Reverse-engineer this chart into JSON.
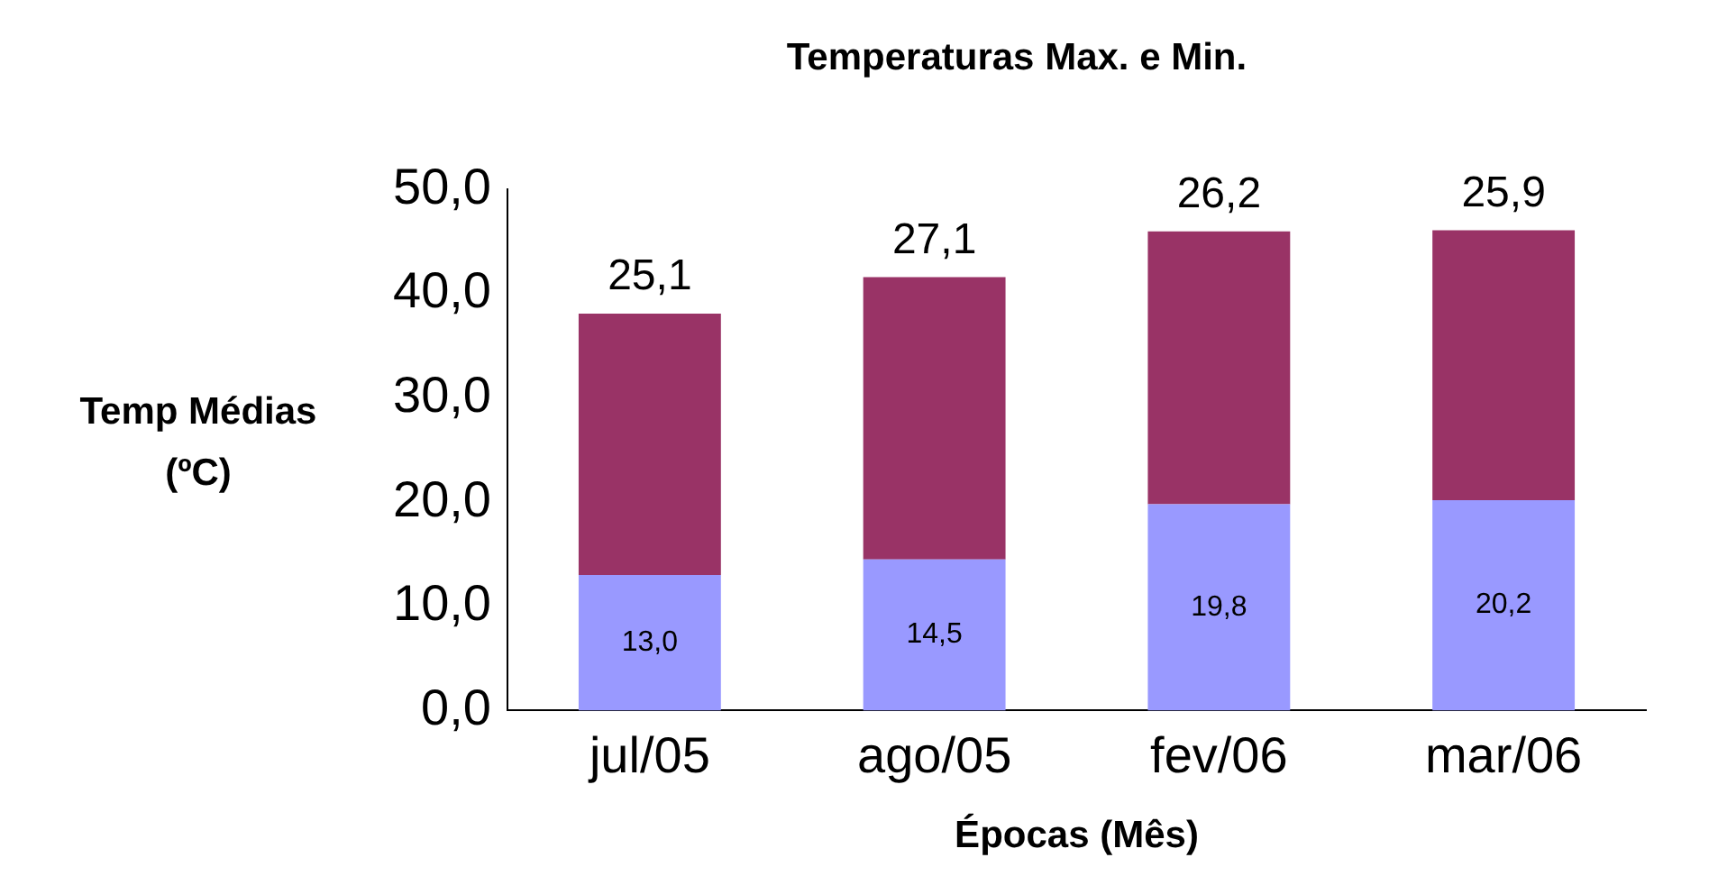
{
  "chart_data": {
    "type": "bar",
    "title": "Temperaturas Max. e Min.",
    "xlabel": "Épocas (Mês)",
    "ylabel": "Temp Médias (ºC)",
    "categories": [
      "jul/05",
      "ago/05",
      "fev/06",
      "mar/06"
    ],
    "series": [
      {
        "color": "#9999ff",
        "values": [
          13.0,
          14.5,
          19.8,
          20.2
        ],
        "value_labels": [
          "13,0",
          "14,5",
          "19,8",
          "20,2"
        ]
      },
      {
        "color": "#993366",
        "values": [
          25.1,
          27.1,
          26.2,
          25.9
        ],
        "value_labels": [
          "25,1",
          "27,1",
          "26,2",
          "25,9"
        ]
      }
    ],
    "stacked": true,
    "ylim": [
      0,
      50
    ],
    "yticks": [
      {
        "value": 0,
        "label": "0,0"
      },
      {
        "value": 10,
        "label": "10,0"
      },
      {
        "value": 20,
        "label": "20,0"
      },
      {
        "value": 30,
        "label": "30,0"
      },
      {
        "value": 40,
        "label": "40,0"
      },
      {
        "value": 50,
        "label": "50,0"
      }
    ],
    "grid": false,
    "legend": false
  }
}
